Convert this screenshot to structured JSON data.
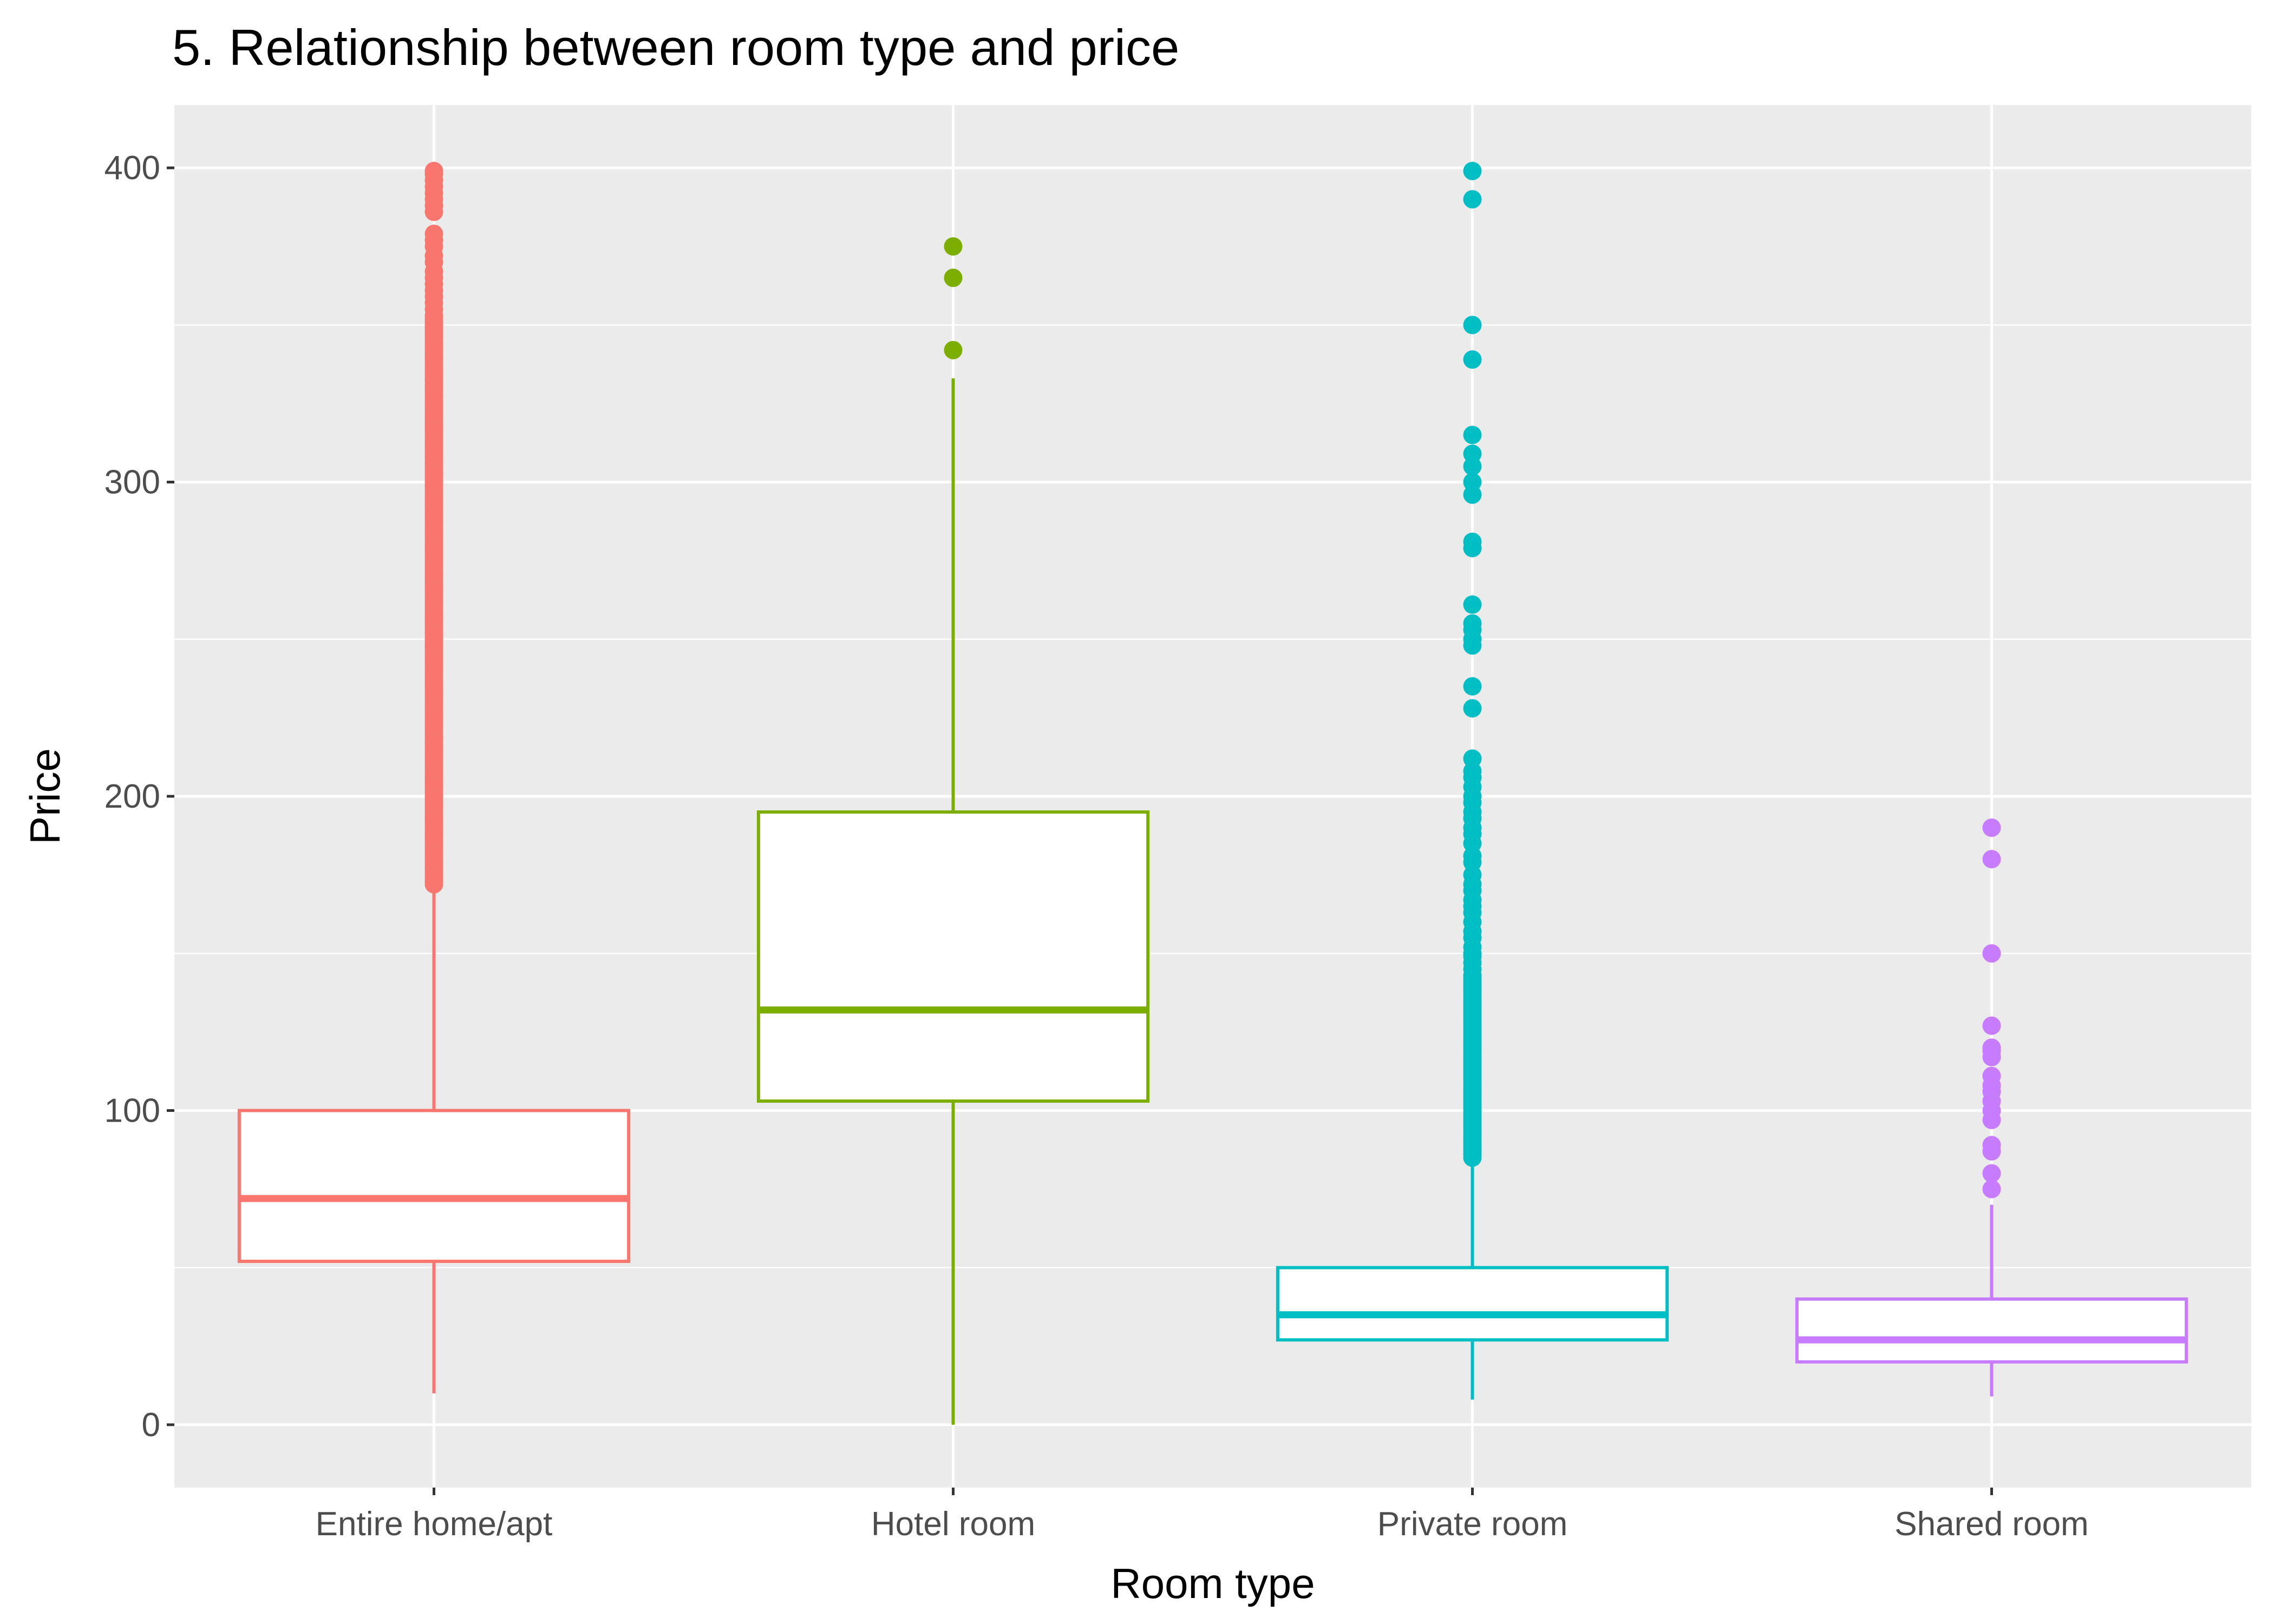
{
  "chart_data": {
    "type": "boxplot",
    "title": "5. Relationship between room type and price",
    "xlabel": "Room type",
    "ylabel": "Price",
    "ylim": [
      -20,
      420
    ],
    "y_ticks": [
      0,
      100,
      200,
      300,
      400
    ],
    "grid": true,
    "legend": "none",
    "categories": [
      "Entire home/apt",
      "Hotel room",
      "Private room",
      "Shared room"
    ],
    "series": [
      {
        "category": "Entire home/apt",
        "color": "#F8766D",
        "whisker_low": 10,
        "q1": 52,
        "median": 72,
        "q3": 100,
        "whisker_high": 172,
        "outliers": [
          172,
          173,
          174,
          175,
          176,
          177,
          178,
          179,
          180,
          181,
          182,
          183,
          184,
          185,
          186,
          187,
          188,
          189,
          190,
          191,
          192,
          193,
          194,
          195,
          196,
          197,
          198,
          199,
          200,
          201,
          202,
          203,
          204,
          205,
          206,
          207,
          208,
          209,
          210,
          211,
          212,
          213,
          214,
          215,
          216,
          217,
          218,
          219,
          220,
          221,
          222,
          223,
          224,
          225,
          226,
          227,
          228,
          229,
          230,
          231,
          232,
          233,
          234,
          235,
          236,
          237,
          238,
          239,
          240,
          241,
          242,
          243,
          244,
          245,
          246,
          247,
          248,
          249,
          250,
          251,
          252,
          253,
          254,
          255,
          256,
          257,
          258,
          259,
          260,
          261,
          262,
          263,
          264,
          265,
          266,
          267,
          268,
          269,
          270,
          271,
          272,
          273,
          274,
          275,
          276,
          277,
          278,
          279,
          280,
          281,
          282,
          283,
          284,
          285,
          286,
          287,
          288,
          289,
          290,
          291,
          292,
          293,
          294,
          295,
          296,
          297,
          298,
          299,
          300,
          301,
          302,
          303,
          304,
          305,
          306,
          307,
          308,
          309,
          310,
          311,
          312,
          313,
          314,
          315,
          316,
          317,
          318,
          319,
          320,
          321,
          322,
          323,
          324,
          325,
          326,
          327,
          328,
          329,
          330,
          331,
          332,
          333,
          334,
          335,
          336,
          337,
          338,
          339,
          340,
          341,
          342,
          343,
          344,
          345,
          346,
          347,
          348,
          349,
          350,
          351,
          352,
          353,
          355,
          357,
          359,
          361,
          363,
          365,
          367,
          370,
          372,
          375,
          377,
          379,
          386,
          388,
          390,
          392,
          394,
          396,
          398,
          399
        ]
      },
      {
        "category": "Hotel room",
        "color": "#7CAE00",
        "whisker_low": 0,
        "q1": 103,
        "median": 132,
        "q3": 195,
        "whisker_high": 333,
        "outliers": [
          342,
          365,
          375
        ]
      },
      {
        "category": "Private room",
        "color": "#00BFC4",
        "whisker_low": 8,
        "q1": 27,
        "median": 35,
        "q3": 50,
        "whisker_high": 84,
        "outliers": [
          85,
          86,
          87,
          88,
          89,
          90,
          91,
          92,
          93,
          94,
          95,
          96,
          97,
          98,
          99,
          100,
          101,
          102,
          103,
          104,
          105,
          106,
          107,
          108,
          109,
          110,
          111,
          112,
          113,
          114,
          115,
          116,
          117,
          118,
          119,
          120,
          121,
          122,
          123,
          124,
          125,
          126,
          127,
          128,
          129,
          130,
          131,
          132,
          133,
          134,
          135,
          136,
          137,
          138,
          139,
          140,
          141,
          142,
          143,
          145,
          147,
          149,
          150,
          152,
          155,
          157,
          160,
          163,
          165,
          167,
          170,
          172,
          175,
          179,
          181,
          185,
          188,
          190,
          193,
          195,
          198,
          200,
          203,
          206,
          208,
          212,
          228,
          235,
          248,
          250,
          253,
          255,
          261,
          279,
          281,
          296,
          300,
          305,
          309,
          315,
          339,
          350,
          390,
          399
        ]
      },
      {
        "category": "Shared room",
        "color": "#C77CFF",
        "whisker_low": 9,
        "q1": 20,
        "median": 27,
        "q3": 40,
        "whisker_high": 70,
        "outliers": [
          75,
          80,
          87,
          89,
          97,
          100,
          103,
          106,
          108,
          111,
          117,
          119,
          120,
          127,
          150,
          180,
          190
        ]
      }
    ]
  }
}
